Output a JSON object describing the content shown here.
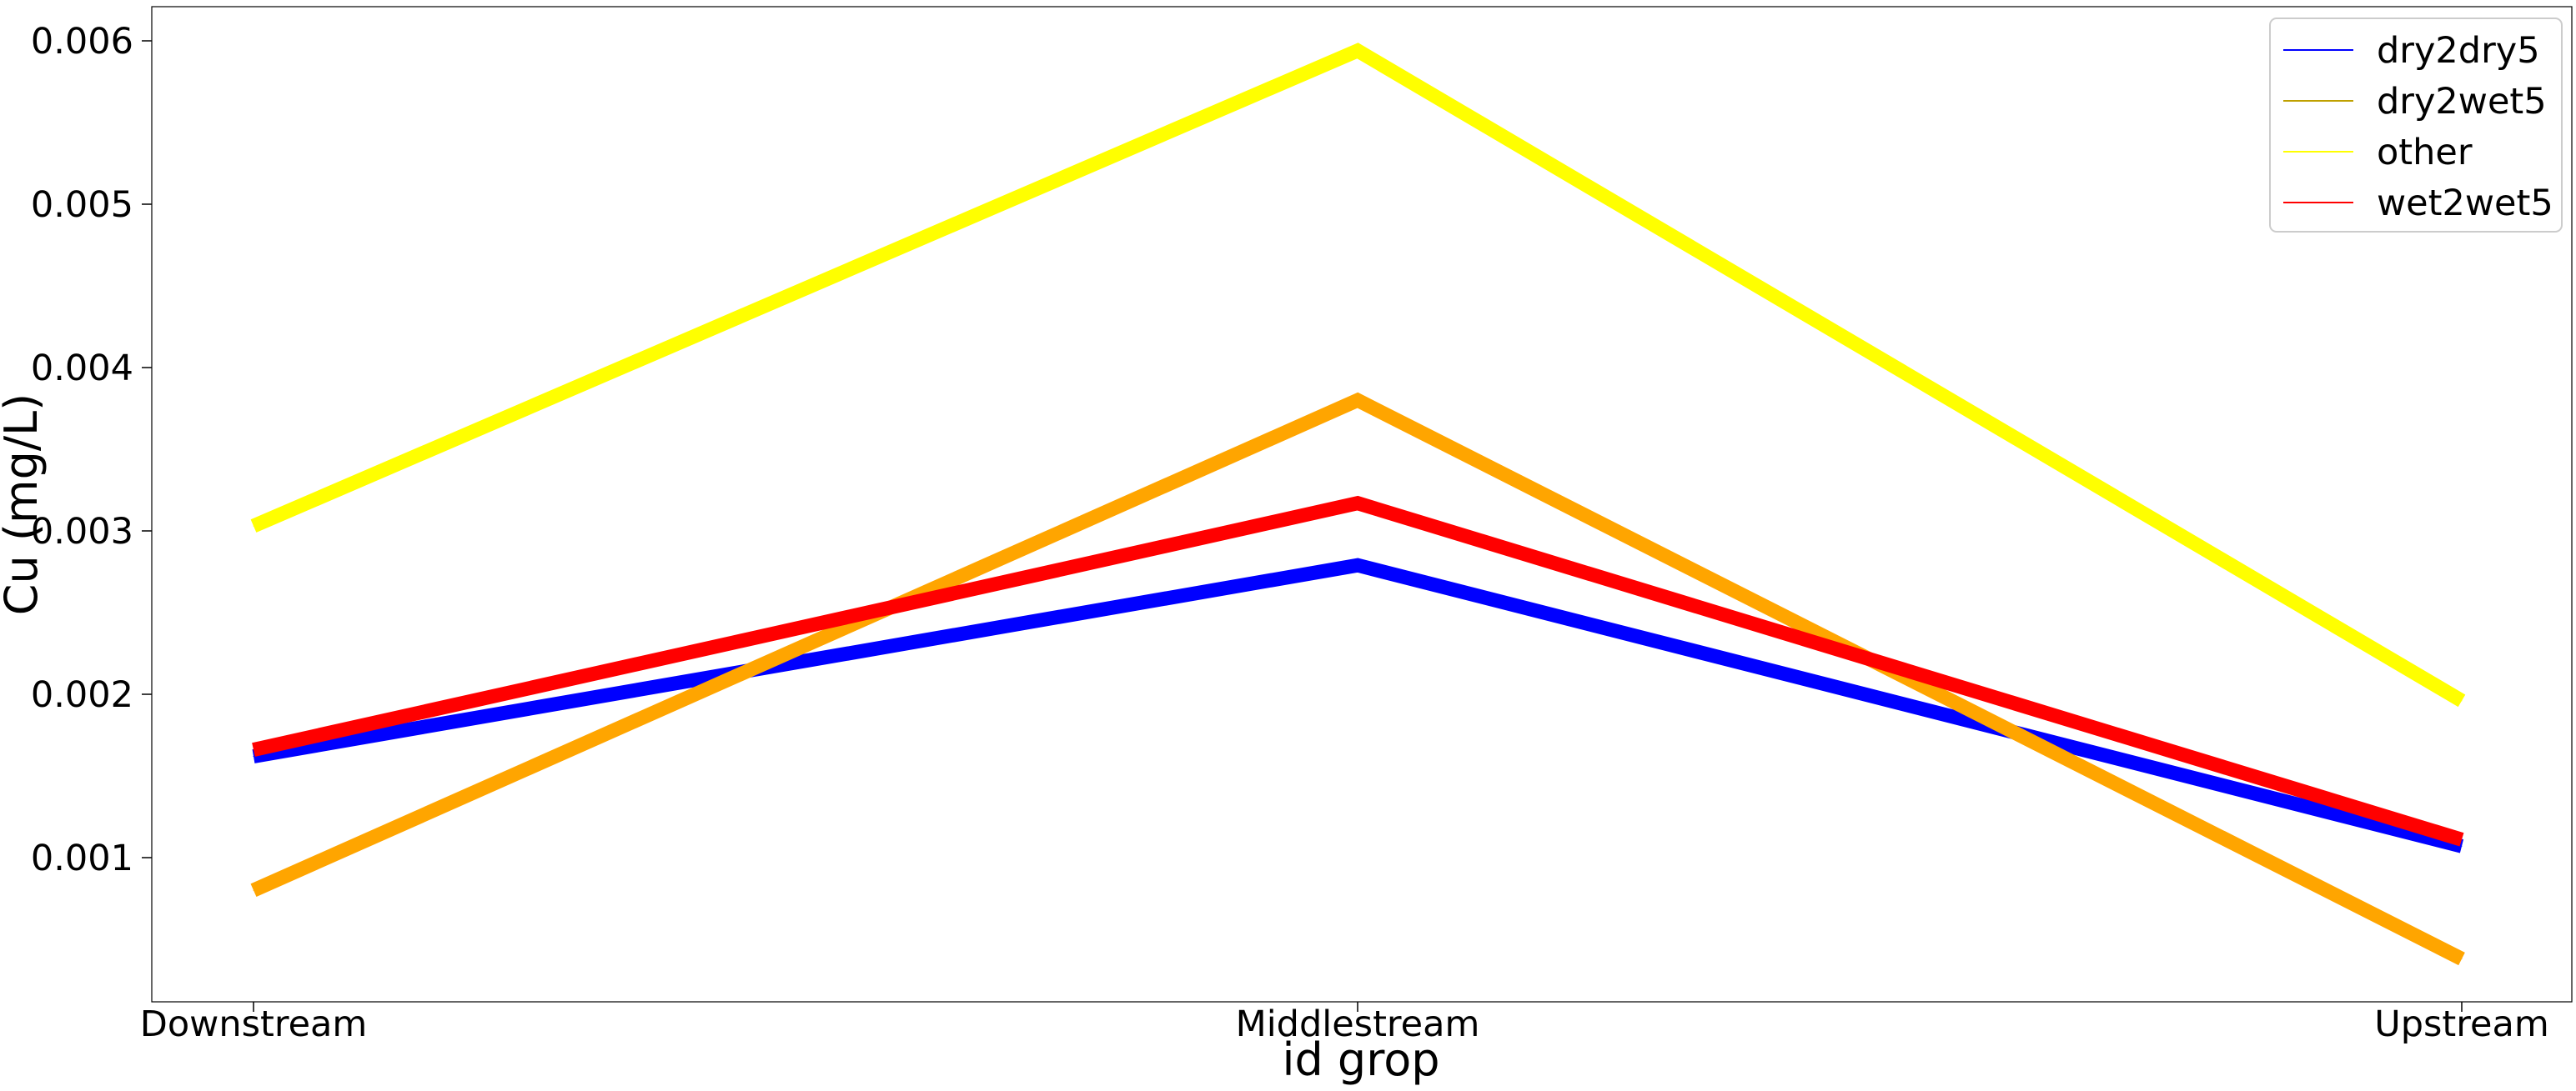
{
  "chart_data": {
    "type": "line",
    "title": "",
    "xlabel": "id grop",
    "ylabel": "Cu (mg/L)",
    "categories": [
      "Downstream",
      "Middlestream",
      "Upstream"
    ],
    "ylim": [
      0.0001,
      0.0062
    ],
    "yticks": [
      0.001,
      0.002,
      0.003,
      0.004,
      0.005,
      0.006
    ],
    "ytick_labels": [
      "0.001",
      "0.002",
      "0.003",
      "0.004",
      "0.005",
      "0.006"
    ],
    "grid": false,
    "legend_position": "top-right",
    "series": [
      {
        "name": "dry2dry5",
        "color": "#0000ff",
        "values": [
          0.00162,
          0.00279,
          0.00107
        ]
      },
      {
        "name": "dry2wet5",
        "color": "#ffa500",
        "values": [
          0.0008,
          0.0038,
          0.00038
        ]
      },
      {
        "name": "other",
        "color": "#ffff00",
        "values": [
          0.00303,
          0.00594,
          0.00196
        ]
      },
      {
        "name": "wet2wet5",
        "color": "#ff0000",
        "values": [
          0.00166,
          0.00317,
          0.00111
        ]
      }
    ],
    "legend_line_colors": [
      "#0000ff",
      "#bfa000",
      "#ffff00",
      "#ff0000"
    ]
  }
}
